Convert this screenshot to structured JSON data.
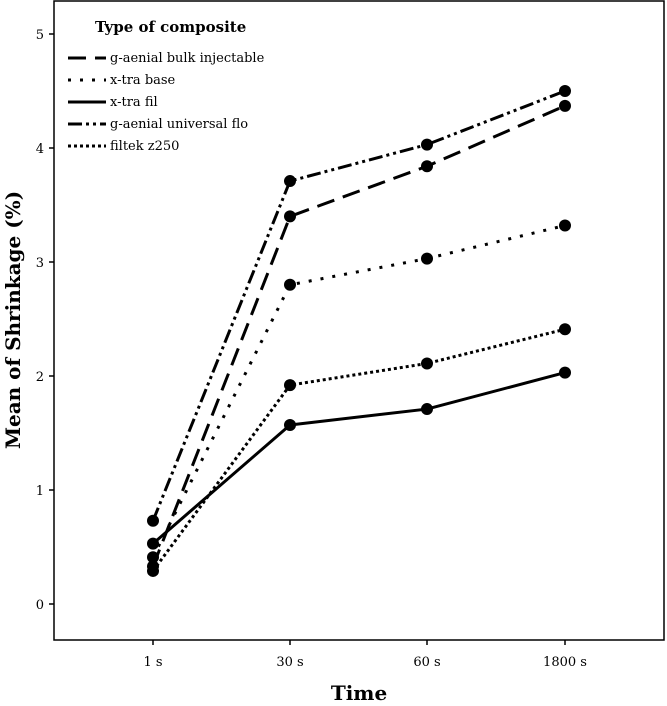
{
  "chart_data": {
    "type": "line",
    "xlabel": "Time",
    "ylabel": "Mean of Shrinkage (%)",
    "categories": [
      "1 s",
      "30 s",
      "60 s",
      "1800 s"
    ],
    "ylim": [
      0,
      5
    ],
    "yticks": [
      0,
      1,
      2,
      3,
      4,
      5
    ],
    "legend": {
      "title": "Type of composite",
      "placement": "top-left"
    },
    "series": [
      {
        "name": "g-aenial bulk injectable",
        "dash": "dashed",
        "values": [
          0.33,
          3.4,
          3.84,
          4.37
        ]
      },
      {
        "name": "x-tra base",
        "dash": "dotted",
        "values": [
          0.41,
          2.8,
          3.03,
          3.32
        ]
      },
      {
        "name": "x-tra fil",
        "dash": "solid",
        "values": [
          0.53,
          1.57,
          1.71,
          2.03
        ]
      },
      {
        "name": "g-aenial universal flo",
        "dash": "dash-dot-dot",
        "values": [
          0.73,
          3.71,
          4.03,
          4.5
        ]
      },
      {
        "name": "filtek z250",
        "dash": "dense-dotted",
        "values": [
          0.29,
          1.92,
          2.11,
          2.41
        ]
      }
    ],
    "grid": false
  }
}
